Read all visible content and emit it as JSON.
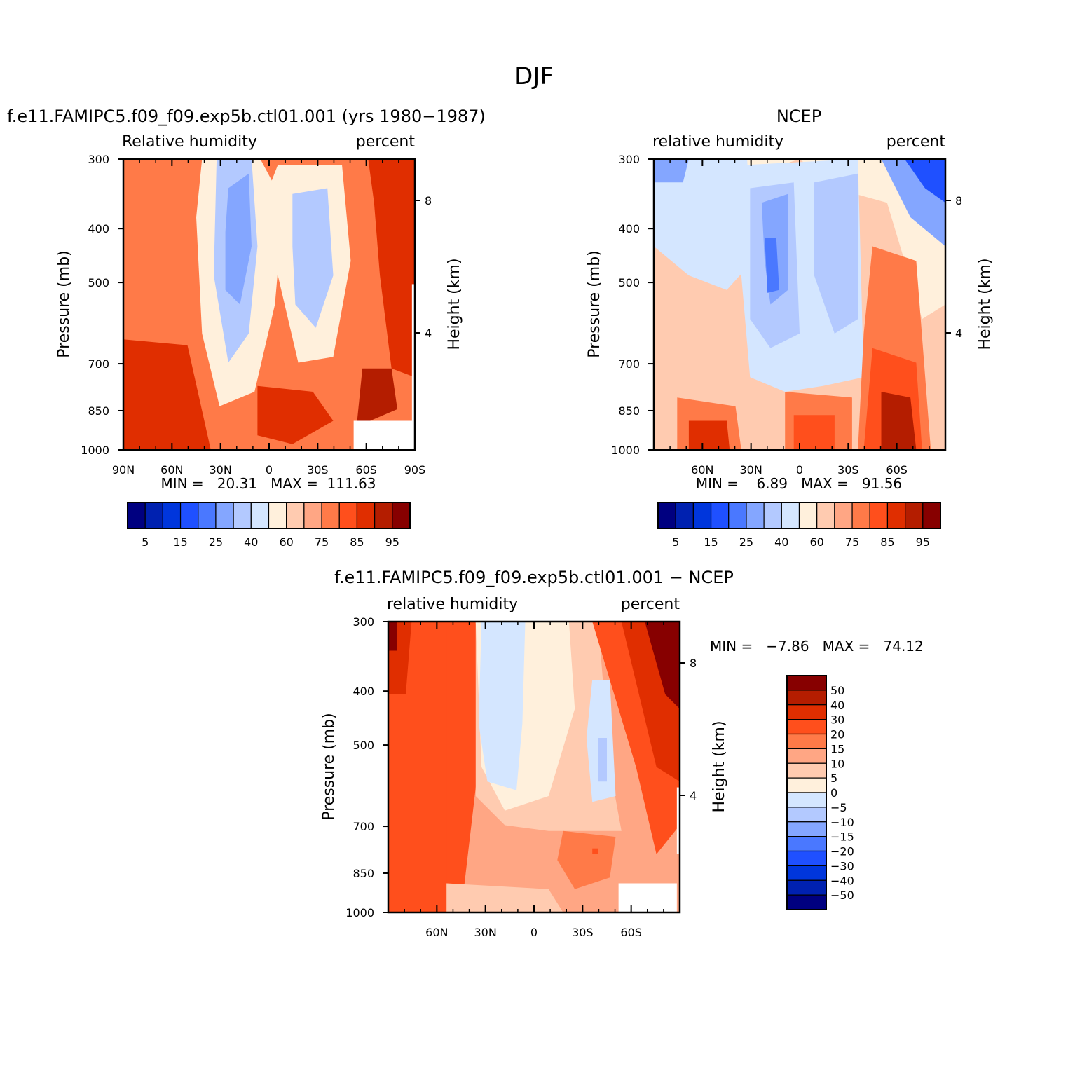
{
  "figure_title": "DJF",
  "colors": {
    "rh_levels": [
      "#000080",
      "#0021b0",
      "#0036dc",
      "#1f50ff",
      "#4a78ff",
      "#84a6ff",
      "#b3c9ff",
      "#d4e6ff",
      "#fff0dc",
      "#ffcbb0",
      "#ffa684",
      "#ff7a48",
      "#ff4f1c",
      "#e02e00",
      "#b41d00",
      "#870000"
    ],
    "diff_levels": [
      "#000080",
      "#0021b0",
      "#0036dc",
      "#1f50ff",
      "#4a78ff",
      "#84a6ff",
      "#b3c9ff",
      "#d4e6ff",
      "#fff0dc",
      "#ffcbb0",
      "#ffa684",
      "#ff7a48",
      "#ff4f1c",
      "#e02e00",
      "#b41d00",
      "#870000"
    ]
  },
  "panels": [
    {
      "title": "f.e11.FAMIPC5.f09_f09.exp5b.ctl01.001 (yrs 1980−1987)",
      "left_label": "Relative humidity",
      "right_label": "percent",
      "ylabel": "Pressure (mb)",
      "ylabel_right": "Height (km)",
      "stats": "MIN =   20.31   MAX =  111.63"
    },
    {
      "title": "NCEP",
      "left_label": "relative humidity",
      "right_label": "percent",
      "ylabel": "Pressure (mb)",
      "ylabel_right": "Height (km)",
      "stats": "MIN =    6.89   MAX =   91.56"
    },
    {
      "title": "f.e11.FAMIPC5.f09_f09.exp5b.ctl01.001 − NCEP",
      "left_label": "relative humidity",
      "right_label": "percent",
      "ylabel": "Pressure (mb)",
      "ylabel_right": "Height (km)",
      "stats": "MIN =   −7.86   MAX =   74.12"
    }
  ],
  "colorbar_rh": {
    "labels": [
      "5",
      "15",
      "25",
      "40",
      "60",
      "75",
      "85",
      "95"
    ]
  },
  "colorbar_diff": {
    "labels": [
      "50",
      "40",
      "30",
      "20",
      "15",
      "10",
      "5",
      "0",
      "−5",
      "−10",
      "−15",
      "−20",
      "−30",
      "−40",
      "−50"
    ]
  },
  "chart_data": [
    {
      "type": "heatmap",
      "title": "f.e11.FAMIPC5.f09_f09.exp5b.ctl01.001 (yrs 1980−1987)",
      "variable": "Relative humidity",
      "units": "percent",
      "xlabel": "",
      "ylabel": "Pressure (mb)",
      "ylabel_right": "Height (km)",
      "x_ticks": [
        "90N",
        "60N",
        "30N",
        "0",
        "30S",
        "60S",
        "90S"
      ],
      "y_ticks": [
        "300",
        "400",
        "500",
        "700",
        "850",
        "1000"
      ],
      "y_right_ticks": [
        "8",
        "4"
      ],
      "min": 20.31,
      "max": 111.63,
      "contour_levels": [
        5,
        10,
        15,
        20,
        25,
        30,
        40,
        50,
        60,
        70,
        75,
        80,
        85,
        90,
        95
      ]
    },
    {
      "type": "heatmap",
      "title": "NCEP",
      "variable": "relative humidity",
      "units": "percent",
      "xlabel": "",
      "ylabel": "Pressure (mb)",
      "ylabel_right": "Height (km)",
      "x_ticks": [
        "60N",
        "30N",
        "0",
        "30S",
        "60S"
      ],
      "y_ticks": [
        "300",
        "400",
        "500",
        "700",
        "850",
        "1000"
      ],
      "y_right_ticks": [
        "8",
        "4"
      ],
      "min": 6.89,
      "max": 91.56,
      "contour_levels": [
        5,
        10,
        15,
        20,
        25,
        30,
        40,
        50,
        60,
        70,
        75,
        80,
        85,
        90,
        95
      ]
    },
    {
      "type": "heatmap",
      "title": "f.e11.FAMIPC5.f09_f09.exp5b.ctl01.001 − NCEP",
      "variable": "relative humidity",
      "units": "percent",
      "xlabel": "",
      "ylabel": "Pressure (mb)",
      "ylabel_right": "Height (km)",
      "x_ticks": [
        "60N",
        "30N",
        "0",
        "30S",
        "60S"
      ],
      "y_ticks": [
        "300",
        "400",
        "500",
        "700",
        "850",
        "1000"
      ],
      "y_right_ticks": [
        "8",
        "4"
      ],
      "min": -7.86,
      "max": 74.12,
      "contour_levels": [
        -50,
        -40,
        -30,
        -20,
        -15,
        -10,
        -5,
        0,
        5,
        10,
        15,
        20,
        30,
        40,
        50
      ]
    }
  ]
}
